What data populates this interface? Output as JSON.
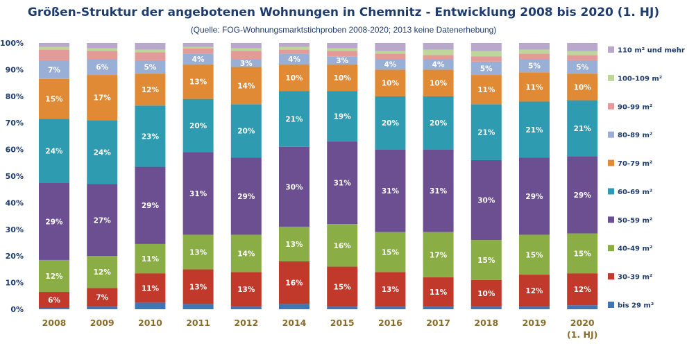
{
  "title": "Größen-Struktur der angebotenen Wohnungen in Chemnitz - Entwicklung 2008 bis 2020 (1. HJ)",
  "subtitle": "(Quelle: FOG-Wohnungsmarktstichproben 2008-2020; 2013 keine Datenerhebung)",
  "chart_data": {
    "type": "bar",
    "stacked": true,
    "percent": true,
    "categories": [
      "2008",
      "2009",
      "2010",
      "2011",
      "2012",
      "2014",
      "2015",
      "2016",
      "2017",
      "2018",
      "2019",
      "2020\n(1. HJ)"
    ],
    "ylim": [
      0,
      100
    ],
    "yticks": [
      "0%",
      "10%",
      "20%",
      "30%",
      "40%",
      "50%",
      "60%",
      "70%",
      "80%",
      "90%",
      "100%"
    ],
    "legend_position": "right",
    "grid": false,
    "series": [
      {
        "name": "bis 29 m²",
        "color": "#3f74b5",
        "values": [
          0.5,
          1,
          2.5,
          2,
          1,
          2,
          1,
          1,
          1,
          1,
          1,
          1.5
        ],
        "labels": [
          "",
          "",
          "",
          "",
          "",
          "",
          "",
          "",
          "",
          "",
          "",
          ""
        ]
      },
      {
        "name": "30-39 m²",
        "color": "#c0392b",
        "values": [
          6,
          7,
          11,
          13,
          13,
          16,
          15,
          13,
          11,
          10,
          12,
          12
        ],
        "labels": [
          "6%",
          "7%",
          "11%",
          "13%",
          "13%",
          "16%",
          "15%",
          "13%",
          "11%",
          "10%",
          "12%",
          "12%"
        ]
      },
      {
        "name": "40-49 m²",
        "color": "#8aae45",
        "values": [
          12,
          12,
          11,
          13,
          14,
          13,
          16,
          15,
          17,
          15,
          15,
          15
        ],
        "labels": [
          "12%",
          "12%",
          "11%",
          "13%",
          "14%",
          "13%",
          "16%",
          "15%",
          "17%",
          "15%",
          "15%",
          "15%"
        ]
      },
      {
        "name": "50-59 m²",
        "color": "#6b4f91",
        "values": [
          29,
          27,
          29,
          31,
          29,
          30,
          31,
          31,
          31,
          30,
          29,
          29
        ],
        "labels": [
          "29%",
          "27%",
          "29%",
          "31%",
          "29%",
          "30%",
          "31%",
          "31%",
          "31%",
          "30%",
          "29%",
          "29%"
        ]
      },
      {
        "name": "60-69 m²",
        "color": "#2e9bb0",
        "values": [
          24,
          24,
          23,
          20,
          20,
          21,
          19,
          20,
          20,
          21,
          21,
          21
        ],
        "labels": [
          "24%",
          "24%",
          "23%",
          "20%",
          "20%",
          "21%",
          "19%",
          "20%",
          "20%",
          "21%",
          "21%",
          "21%"
        ]
      },
      {
        "name": "70-79 m²",
        "color": "#e08a35",
        "values": [
          15,
          17,
          12,
          13,
          14,
          10,
          10,
          10,
          10,
          11,
          11,
          10
        ],
        "labels": [
          "15%",
          "17%",
          "12%",
          "13%",
          "14%",
          "10%",
          "10%",
          "10%",
          "10%",
          "11%",
          "11%",
          "10%"
        ]
      },
      {
        "name": "80-89 m²",
        "color": "#9aafd6",
        "values": [
          7,
          6,
          5,
          4,
          3,
          4,
          3,
          4,
          4,
          5,
          5,
          5
        ],
        "labels": [
          "7%",
          "6%",
          "5%",
          "4%",
          "3%",
          "4%",
          "3%",
          "4%",
          "4%",
          "5%",
          "5%",
          "5%"
        ]
      },
      {
        "name": "90-99 m²",
        "color": "#e39b9a",
        "values": [
          4,
          3,
          3,
          2,
          3,
          1.5,
          2,
          2,
          1.5,
          2,
          2,
          2
        ],
        "labels": [
          "",
          "",
          "",
          "",
          "",
          "",
          "",
          "",
          "",
          "",
          "",
          ""
        ]
      },
      {
        "name": "100-109 m²",
        "color": "#bdd79a",
        "values": [
          1,
          1,
          1,
          0.5,
          1,
          1,
          1,
          1,
          2,
          2,
          1.5,
          1.5
        ],
        "labels": [
          "",
          "",
          "",
          "",
          "",
          "",
          "",
          "",
          "",
          "",
          "",
          ""
        ]
      },
      {
        "name": "110 m² und mehr",
        "color": "#b9a8cc",
        "values": [
          1.5,
          2,
          2.5,
          1.5,
          2,
          1.5,
          2,
          3,
          2.5,
          3,
          2.5,
          3
        ],
        "labels": [
          "",
          "",
          "",
          "",
          "",
          "",
          "",
          "",
          "",
          "",
          "",
          ""
        ]
      }
    ]
  }
}
